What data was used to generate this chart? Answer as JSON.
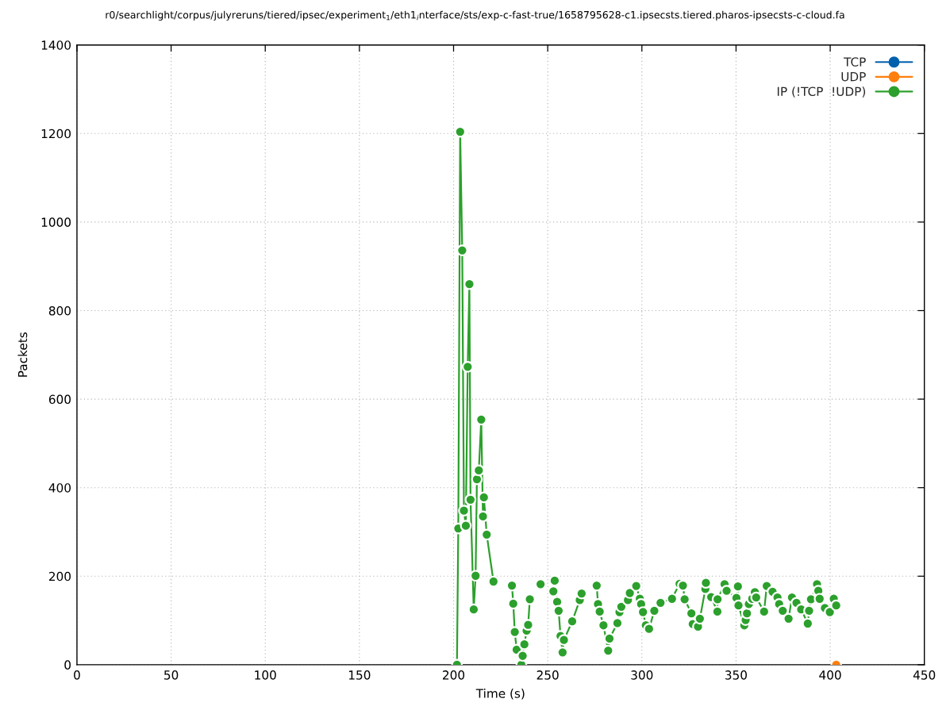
{
  "chart_data": {
    "type": "line",
    "title": "r0/searchlight/corpus/julyreruns/tiered/ipsec/experiment$_{1}$/eth1$_{i}$nterface/sts/exp-c-fast-true/1658795628-c1.ipsecsts.tiered.pharos-ipsecsts-c-cloud.fa",
    "xlabel": "Time (s)",
    "ylabel": "Packets",
    "xlim": [
      0,
      450
    ],
    "xticks": [
      0,
      50,
      100,
      150,
      200,
      250,
      300,
      350,
      400,
      450
    ],
    "ylim": [
      0,
      1400
    ],
    "yticks": [
      0,
      200,
      400,
      600,
      800,
      1000,
      1200,
      1400
    ],
    "grid": true,
    "legend": "top right",
    "marker": "circle",
    "line_style": "solid",
    "series": [
      {
        "name": "TCP",
        "color": "#0060ad"
      },
      {
        "name": "UDP",
        "color": "#ff7f0e",
        "x": [
          403.2
        ],
        "values": [
          0
        ]
      },
      {
        "name": "IP (!TCP  !UDP)",
        "color": "#2ca02c",
        "x": [
          201.8,
          202.5,
          203.5,
          204.6,
          205.5,
          206.5,
          207.5,
          208.4,
          209.0,
          210.7,
          211.7,
          212.4,
          213.4,
          214.7,
          215.6,
          216.1,
          217.6,
          221.2,
          null,
          231.0,
          231.7,
          232.5,
          233.5,
          236.0,
          236.7,
          237.6,
          238.8,
          239.6,
          240.5,
          null,
          246.2,
          null,
          253.0,
          253.7,
          255.0,
          255.8,
          256.8,
          257.9,
          258.6,
          263.0,
          267.0,
          268.0,
          null,
          276.0,
          276.7,
          277.6,
          279.6,
          282.1,
          282.8,
          287.0,
          288.1,
          289.1,
          292.6,
          293.6,
          297.0,
          298.9,
          299.6,
          300.6,
          302.1,
          303.8,
          306.6,
          309.9,
          316.0,
          320.0,
          321.8,
          322.7,
          326.3,
          327.0,
          329.8,
          330.8,
          333.7,
          334.0,
          336.8,
          340.1,
          340.2,
          343.9,
          345.0,
          350.2,
          351.0,
          351.3,
          354.4,
          355.1,
          355.8,
          356.8,
          358.6,
          360.0,
          360.7,
          364.9,
          366.3,
          369.4,
          372.0,
          372.9,
          374.8,
          377.9,
          379.7,
          382.1,
          384.6,
          388.1,
          388.8,
          389.8,
          393.0,
          393.7,
          394.4,
          397.2,
          399.8,
          401.9,
          403.2
        ],
        "values": [
          0,
          308,
          1204,
          936,
          348,
          314,
          673,
          860,
          373,
          125,
          201,
          419,
          439,
          554,
          335,
          378,
          294,
          188,
          null,
          179,
          138,
          74,
          34,
          0,
          20,
          46,
          77,
          90,
          148,
          null,
          182,
          null,
          166,
          190,
          142,
          122,
          65,
          28,
          56,
          98,
          146,
          161,
          null,
          179,
          137,
          120,
          89,
          32,
          59,
          94,
          119,
          131,
          146,
          162,
          178,
          149,
          137,
          119,
          89,
          81,
          122,
          140,
          149,
          183,
          179,
          148,
          116,
          92,
          86,
          104,
          171,
          185,
          153,
          120,
          148,
          182,
          167,
          151,
          177,
          134,
          89,
          101,
          116,
          137,
          149,
          164,
          152,
          120,
          178,
          165,
          152,
          137,
          122,
          104,
          152,
          140,
          125,
          93,
          122,
          148,
          182,
          167,
          149,
          128,
          119,
          149,
          134
        ]
      }
    ]
  }
}
